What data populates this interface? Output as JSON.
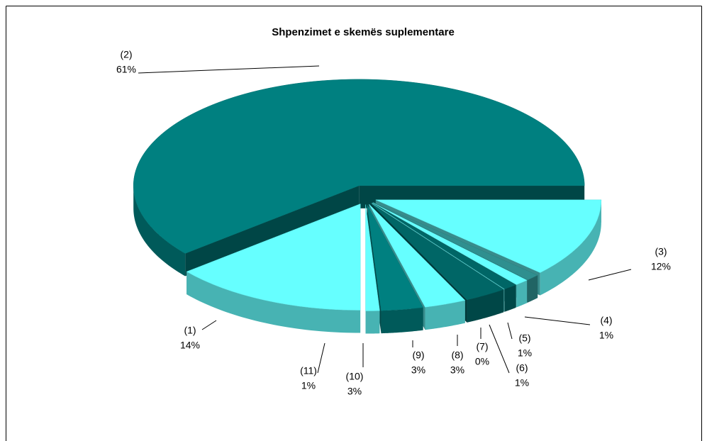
{
  "chart_data": {
    "type": "pie3d",
    "title": "Shpenzimet e skemës suplementare",
    "categories": [
      "(1)",
      "(2)",
      "(3)",
      "(4)",
      "(5)",
      "(6)",
      "(7)",
      "(8)",
      "(9)",
      "(10)",
      "(11)"
    ],
    "values": [
      14,
      61,
      12,
      1,
      1,
      1,
      0,
      3,
      3,
      3,
      1
    ],
    "value_labels": [
      "14%",
      "61%",
      "12%",
      "1%",
      "1%",
      "1%",
      "0%",
      "3%",
      "3%",
      "3%",
      "1%"
    ],
    "colors": [
      "#66ffff",
      "#008080",
      "#66ffff",
      "#2f8f8f",
      "#66ffff",
      "#006666",
      "#66ffff",
      "#006666",
      "#66ffff",
      "#008080",
      "#66ffff"
    ]
  }
}
